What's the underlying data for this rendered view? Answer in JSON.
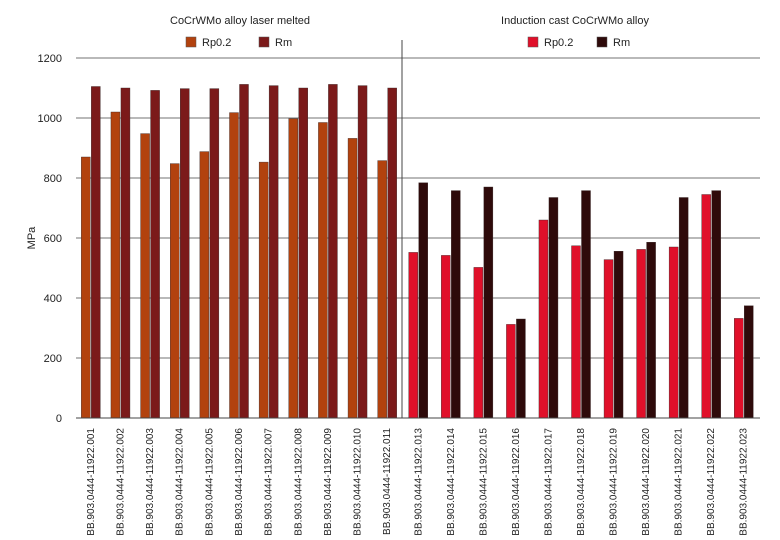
{
  "chart_data": {
    "type": "bar",
    "ylabel": "MPa",
    "ylim": [
      0,
      1200
    ],
    "yticks": [
      0,
      200,
      400,
      600,
      800,
      1000,
      1200
    ],
    "grid": true,
    "panels": [
      {
        "title": "CoCrWMo alloy laser melted",
        "categories": [
          "BB.903.0444-11922.001",
          "BB.903.0444-11922.002",
          "BB.903.0444-11922.003",
          "BB.903.0444-11922.004",
          "BB.903.0444-11922.005",
          "BB.903.0444-11922.006",
          "BB.903.0444-11922.007",
          "BB.903.0444-11922.008",
          "BB.903.0444-11922.009",
          "BB.903.0444-11922.010",
          "BB.903.0444-11922.011"
        ],
        "series": [
          {
            "name": "Rp0.2",
            "color": "#b2420e",
            "values": [
              870,
              1020,
              948,
              848,
              888,
              1018,
              853,
              998,
              985,
              932,
              858
            ]
          },
          {
            "name": "Rm",
            "color": "#7b1a1a",
            "values": [
              1105,
              1100,
              1092,
              1098,
              1098,
              1112,
              1108,
              1100,
              1112,
              1108,
              1100
            ]
          }
        ]
      },
      {
        "title": "Induction cast CoCrWMo alloy",
        "categories": [
          "BB.903.0444-11922.013",
          "BB.903.0444-11922.014",
          "BB.903.0444-11922.015",
          "BB.903.0444-11922.016",
          "BB.903.0444-11922.017",
          "BB.903.0444-11922.018",
          "BB.903.0444-11922.019",
          "BB.903.0444-11922.020",
          "BB.903.0444-11922.021",
          "BB.903.0444-11922.022",
          "BB.903.0444-11922.023"
        ],
        "series": [
          {
            "name": "Rp0.2",
            "color": "#e0102a",
            "values": [
              552,
              542,
              502,
              312,
              660,
              574,
              528,
              562,
              570,
              745,
              332
            ]
          },
          {
            "name": "Rm",
            "color": "#2e0a0a",
            "values": [
              784,
              758,
              770,
              330,
              735,
              758,
              556,
              586,
              735,
              758,
              374
            ]
          }
        ]
      }
    ]
  }
}
